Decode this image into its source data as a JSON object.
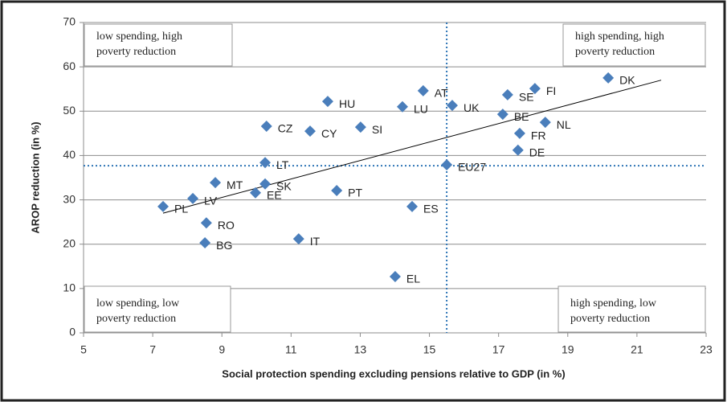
{
  "chart_data": {
    "type": "scatter",
    "xlabel": "Social protection spending excluding pensions relative to GDP (in %)",
    "ylabel": "AROP reduction (in %)",
    "color": "#4a7ebb",
    "labels": [
      "DK",
      "FI",
      "SE",
      "AT",
      "UK",
      "LU",
      "HU",
      "BE",
      "NL",
      "FR",
      "DE",
      "CZ",
      "CY",
      "SI",
      "LT",
      "EU27",
      "MT",
      "SK",
      "EE",
      "PT",
      "LV",
      "PL",
      "ES",
      "RO",
      "BG",
      "IT",
      "EL"
    ],
    "x": [
      20.17,
      18.05,
      17.26,
      14.82,
      15.66,
      14.22,
      12.06,
      17.12,
      18.35,
      17.61,
      17.56,
      10.29,
      11.55,
      13.01,
      10.25,
      15.5,
      8.81,
      10.25,
      9.97,
      12.32,
      8.16,
      7.3,
      14.5,
      8.55,
      8.51,
      11.22,
      14.01
    ],
    "values": [
      57.5,
      55.1,
      53.7,
      54.6,
      51.3,
      51.0,
      52.2,
      49.3,
      47.5,
      45.0,
      41.2,
      46.6,
      45.5,
      46.4,
      38.4,
      37.9,
      33.9,
      33.6,
      31.6,
      32.1,
      30.3,
      28.5,
      28.5,
      24.8,
      20.3,
      21.2,
      12.7
    ],
    "xlim": [
      5,
      23
    ],
    "xticks": [
      5,
      7,
      9,
      11,
      13,
      15,
      17,
      19,
      21,
      23
    ],
    "ylim": [
      0,
      70
    ],
    "yticks": [
      0,
      10,
      20,
      30,
      40,
      50,
      60,
      70
    ],
    "grid": true,
    "trendline": {
      "x": [
        7.3,
        21.7
      ],
      "y": [
        27.0,
        57.0
      ]
    },
    "reference_lines": {
      "x": 15.5,
      "y": 37.7
    },
    "quadrants": [
      {
        "lines": [
          "low spending, high",
          "poverty reduction"
        ]
      },
      {
        "lines": [
          "high spending, high",
          "poverty reduction"
        ]
      },
      {
        "lines": [
          "low spending, low",
          "poverty reduction"
        ]
      },
      {
        "lines": [
          "high spending, low",
          "poverty reduction"
        ]
      }
    ]
  }
}
